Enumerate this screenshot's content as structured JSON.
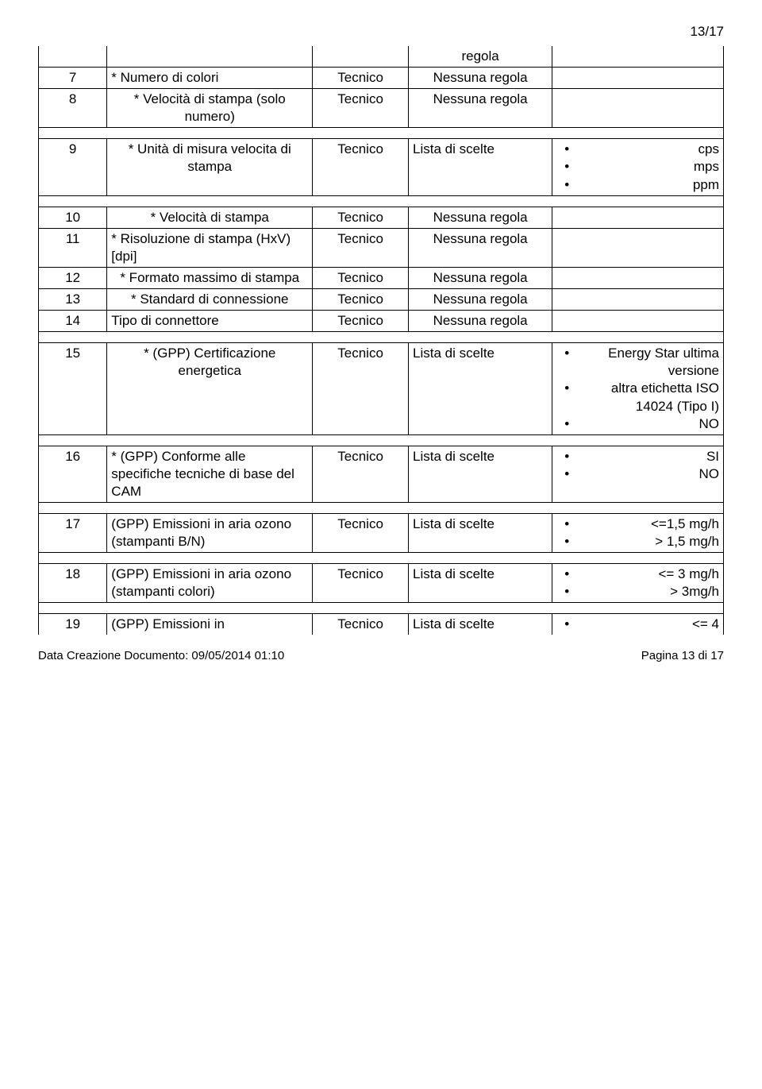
{
  "page_header": "13/17",
  "cells": {
    "r0_c1": "regola",
    "r1_n": "7",
    "r1_name": "* Numero di colori",
    "r1_cat": "Tecnico",
    "r1_rule": "Nessuna regola",
    "r2_n": "8",
    "r2_name": "* Velocità di stampa (solo numero)",
    "r2_cat": "Tecnico",
    "r2_rule": "Nessuna regola",
    "r3_n": "9",
    "r3_name": "* Unità di misura velocita di stampa",
    "r3_cat": "Tecnico",
    "r3_rule": "Lista di scelte",
    "r3_opts": [
      "cps",
      "mps",
      "ppm"
    ],
    "r4_n": "10",
    "r4_name": "* Velocità di stampa",
    "r4_cat": "Tecnico",
    "r4_rule": "Nessuna regola",
    "r5_n": "11",
    "r5_name": "* Risoluzione di stampa (HxV) [dpi]",
    "r5_cat": "Tecnico",
    "r5_rule": "Nessuna regola",
    "r6_n": "12",
    "r6_name": "* Formato massimo di stampa",
    "r6_cat": "Tecnico",
    "r6_rule": "Nessuna regola",
    "r7_n": "13",
    "r7_name": "* Standard di connessione",
    "r7_cat": "Tecnico",
    "r7_rule": "Nessuna regola",
    "r8_n": "14",
    "r8_name": "Tipo di connettore",
    "r8_cat": "Tecnico",
    "r8_rule": "Nessuna regola",
    "r9_n": "15",
    "r9_name": "* (GPP) Certificazione energetica",
    "r9_cat": "Tecnico",
    "r9_rule": "Lista di scelte",
    "r9_opts": [
      "Energy Star ultima versione",
      "altra etichetta ISO 14024 (Tipo I)",
      "NO"
    ],
    "r10_n": "16",
    "r10_name": "* (GPP) Conforme alle specifiche tecniche di base del CAM",
    "r10_cat": "Tecnico",
    "r10_rule": "Lista di scelte",
    "r10_opts": [
      "SI",
      "NO"
    ],
    "r11_n": "17",
    "r11_name": "(GPP) Emissioni in aria ozono (stampanti B/N)",
    "r11_cat": "Tecnico",
    "r11_rule": "Lista di scelte",
    "r11_opts": [
      "<=1,5 mg/h",
      "> 1,5 mg/h"
    ],
    "r12_n": "18",
    "r12_name": "(GPP) Emissioni in aria ozono (stampanti colori)",
    "r12_cat": "Tecnico",
    "r12_rule": "Lista di scelte",
    "r12_opts": [
      "<= 3 mg/h",
      "> 3mg/h"
    ],
    "r13_n": "19",
    "r13_name": "(GPP) Emissioni in",
    "r13_cat": "Tecnico",
    "r13_rule": "Lista di scelte",
    "r13_opts": [
      "<= 4"
    ]
  },
  "footer_left": "Data Creazione Documento: 09/05/2014 01:10",
  "footer_right": "Pagina 13 di 17"
}
